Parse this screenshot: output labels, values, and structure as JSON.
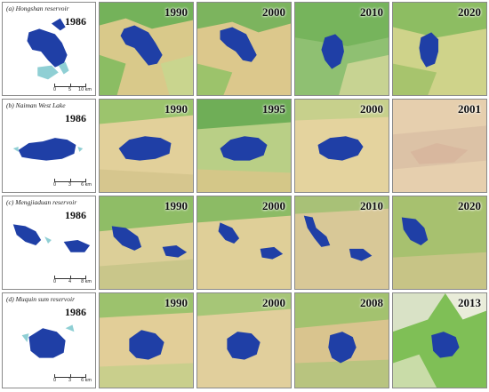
{
  "rows": [
    {
      "label": "(a) Hongshan reservoir",
      "base_year": "1986",
      "scale": [
        "0",
        "5",
        "10 km"
      ],
      "years": [
        "1990",
        "2000",
        "2010",
        "2020"
      ]
    },
    {
      "label": "(b) Naiman West Lake",
      "base_year": "1986",
      "scale": [
        "0",
        "3",
        "6 km"
      ],
      "years": [
        "1990",
        "1995",
        "2000",
        "2001"
      ]
    },
    {
      "label": "(c) Mengjiaduan reservoir",
      "base_year": "1986",
      "scale": [
        "0",
        "4",
        "8 km"
      ],
      "years": [
        "1990",
        "2000",
        "2010",
        "2020"
      ]
    },
    {
      "label": "(d) Muquin sum reservoir",
      "base_year": "1986",
      "scale": [
        "0",
        "3",
        "6 km"
      ],
      "years": [
        "1990",
        "2000",
        "2008",
        "2013"
      ]
    }
  ],
  "colors": {
    "water": "#1f3fa6",
    "water_light": "#8fcfd4",
    "vegetation": "#5fae4c",
    "sand": "#e7d39a",
    "border": "#8a8a8a"
  }
}
